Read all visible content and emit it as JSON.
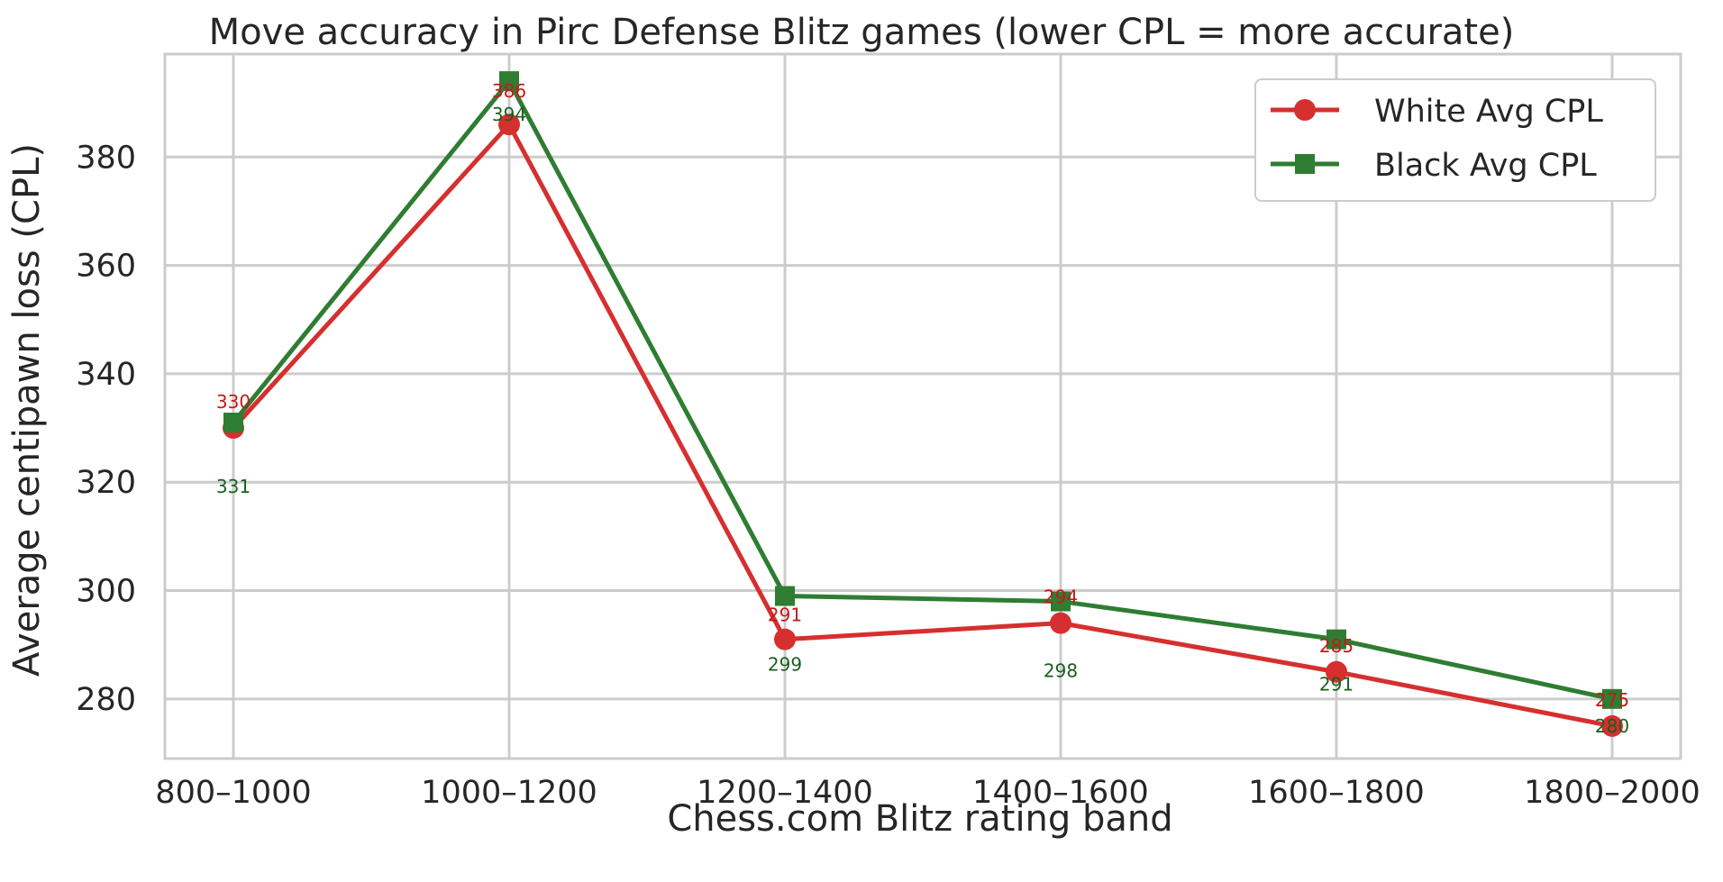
{
  "chart_data": {
    "type": "line",
    "title": "Move accuracy in Pirc Defense Blitz games (lower CPL = more accurate)",
    "xlabel": "Chess.com Blitz rating band",
    "ylabel": "Average centipawn loss (CPL)",
    "categories": [
      "800–1000",
      "1000–1200",
      "1200–1400",
      "1400–1600",
      "1600–1800",
      "1800–2000"
    ],
    "ylim": [
      269,
      399
    ],
    "yticks": [
      280,
      300,
      320,
      340,
      360,
      380
    ],
    "grid": true,
    "legend_position": "top-right",
    "series": [
      {
        "name": "White Avg CPL",
        "values": [
          330,
          386,
          291,
          294,
          285,
          275
        ],
        "color": "#d62f2f",
        "marker": "circle",
        "labels": [
          "330",
          "386",
          "291",
          "294",
          "285",
          "275"
        ]
      },
      {
        "name": "Black Avg CPL",
        "values": [
          331,
          394,
          299,
          298,
          291,
          280
        ],
        "color": "#2e7d32",
        "marker": "square",
        "labels": [
          "331",
          "394",
          "299",
          "298",
          "291",
          "280"
        ]
      }
    ]
  }
}
